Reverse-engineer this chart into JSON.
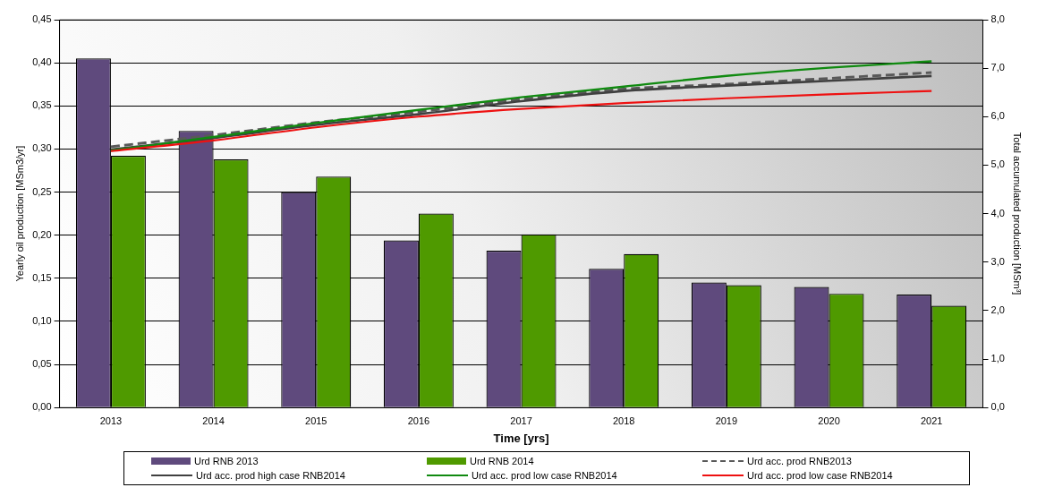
{
  "chart_data": {
    "type": "bar",
    "xlabel": "Time [yrs]",
    "ylabel": "Yearly oil production [MSm3/yr]",
    "y2label": "Total accumulated production [MSm³]",
    "categories": [
      "2013",
      "2014",
      "2015",
      "2016",
      "2017",
      "2018",
      "2019",
      "2020",
      "2021"
    ],
    "series": [
      {
        "name": "Urd RNB 2013",
        "color": "#5f4a7d",
        "values": [
          0.405,
          0.321,
          0.25,
          0.194,
          0.182,
          0.161,
          0.145,
          0.14,
          0.131
        ]
      },
      {
        "name": "Urd RNB 2014",
        "color": "#4f9a00",
        "values": [
          0.292,
          0.288,
          0.268,
          0.225,
          0.201,
          0.178,
          0.142,
          0.132,
          0.118
        ]
      },
      {
        "name": "Urd acc. prod RNB2013",
        "type": "line",
        "axis": "y2",
        "line_style": "dashed",
        "color": "#595959",
        "values": [
          5.38,
          5.62,
          5.88,
          6.1,
          6.36,
          6.57,
          6.67,
          6.79,
          6.91
        ]
      },
      {
        "name": "Urd acc. prod high case RNB2014",
        "type": "line",
        "axis": "y2",
        "line_style": "solid",
        "color": "#404040",
        "values": [
          5.32,
          5.56,
          5.83,
          6.05,
          6.32,
          6.53,
          6.64,
          6.74,
          6.84
        ]
      },
      {
        "name": "Urd acc. prod low case RNB2014",
        "type": "line",
        "axis": "y2",
        "line_style": "solid",
        "color": "#108a10",
        "values": [
          5.3,
          5.58,
          5.87,
          6.14,
          6.4,
          6.62,
          6.84,
          7.01,
          7.14
        ]
      },
      {
        "name": "Urd acc. prod low case RNB2014",
        "type": "line",
        "axis": "y2",
        "line_style": "solid",
        "color": "#ee1111",
        "values": [
          5.29,
          5.51,
          5.78,
          6.0,
          6.16,
          6.28,
          6.38,
          6.46,
          6.53
        ]
      }
    ],
    "ylim": [
      0,
      0.45
    ],
    "yticks": [
      {
        "value": 0,
        "label": "0,00"
      },
      {
        "value": 0.05,
        "label": "0,05"
      },
      {
        "value": 0.1,
        "label": "0,10"
      },
      {
        "value": 0.15,
        "label": "0,15"
      },
      {
        "value": 0.2,
        "label": "0,20"
      },
      {
        "value": 0.25,
        "label": "0,25"
      },
      {
        "value": 0.3,
        "label": "0,30"
      },
      {
        "value": 0.35,
        "label": "0,35"
      },
      {
        "value": 0.4,
        "label": "0,40"
      },
      {
        "value": 0.45,
        "label": "0,45"
      }
    ],
    "y2lim": [
      0,
      8
    ],
    "y2ticks": [
      {
        "value": 0,
        "label": "0,0"
      },
      {
        "value": 1,
        "label": "1,0"
      },
      {
        "value": 2,
        "label": "2,0"
      },
      {
        "value": 3,
        "label": "3,0"
      },
      {
        "value": 4,
        "label": "4,0"
      },
      {
        "value": 5,
        "label": "5,0"
      },
      {
        "value": 6,
        "label": "6,0"
      },
      {
        "value": 7,
        "label": "7,0"
      },
      {
        "value": 8,
        "label": "8,0"
      }
    ],
    "grid": "y",
    "legend": "bottom",
    "marker": "none"
  }
}
